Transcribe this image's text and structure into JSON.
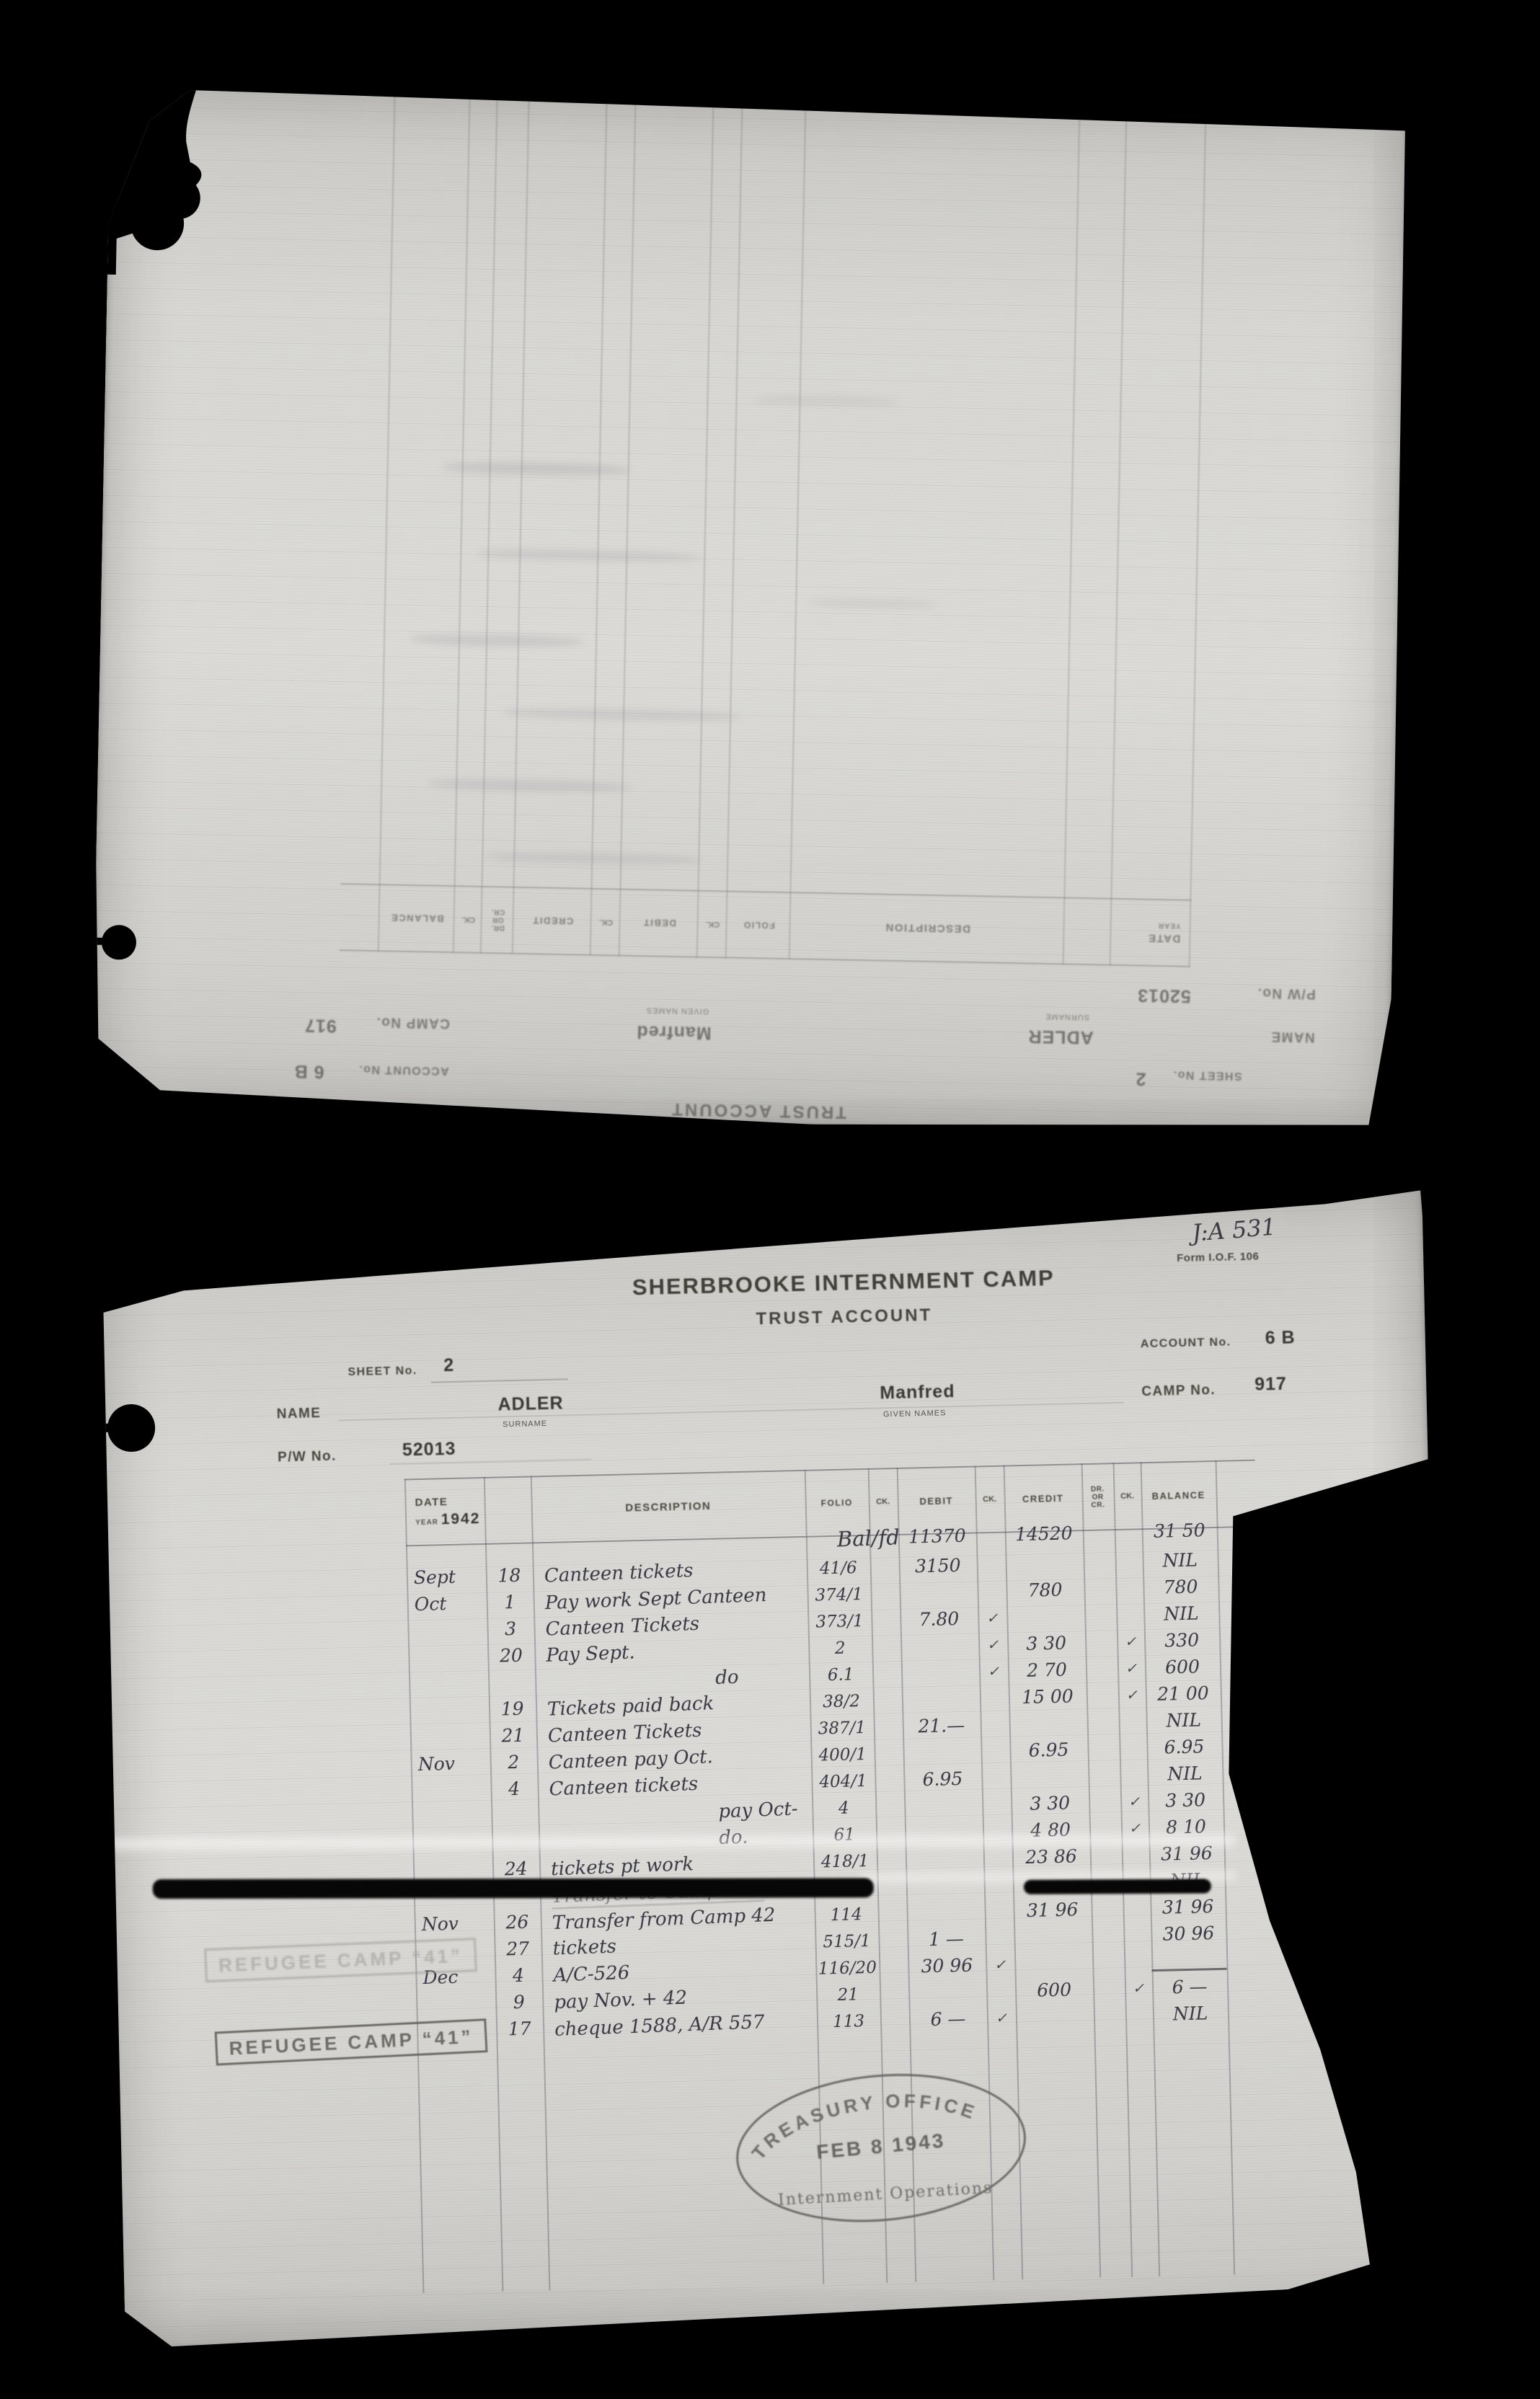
{
  "scan": {
    "file_ref": "J:A 531",
    "form_ref": "Form I.O.F. 106",
    "title": "SHERBROOKE INTERNMENT CAMP",
    "subtitle": "TRUST ACCOUNT",
    "labels": {
      "sheet_no": "SHEET No.",
      "account_no": "ACCOUNT No.",
      "name": "NAME",
      "surname": "SURNAME",
      "given_names": "GIVEN NAMES",
      "pw_no": "P/W No.",
      "camp_no": "CAMP No."
    },
    "columns": {
      "date": "DATE",
      "year": "YEAR",
      "description": "DESCRIPTION",
      "folio": "FOLIO",
      "ck": "CK.",
      "debit": "DEBIT",
      "credit": "CREDIT",
      "dr": "DR.",
      "or": "OR",
      "cr": "CR.",
      "balance": "BALANCE"
    },
    "account": {
      "sheet_no": "2",
      "surname": "ADLER",
      "given_names": "Manfred",
      "pw_no": "52013",
      "account_no": "6 B",
      "camp_no": "917",
      "year": "1942"
    },
    "stamps": {
      "refugee_camp": "REFUGEE CAMP “41”",
      "treasury_line1": "TREASURY OFFICE",
      "treasury_line2": "FEB 8 1943",
      "treasury_line3": "Internment Operations"
    },
    "ledger": {
      "rows": [
        {
          "desc": "Bal/fd",
          "db": "11370",
          "cr": "14520",
          "bal": "31 50",
          "rk": "✓",
          "cls": "balfwd"
        },
        {
          "m": "Sept",
          "d": "18",
          "desc": "Canteen tickets",
          "f": "41/6",
          "db": "3150",
          "bal": "NIL",
          "rk": "✓"
        },
        {
          "m": "Oct",
          "d": "1",
          "desc": "Pay work Sept Canteen",
          "f": "374/1",
          "cr": "780",
          "bal": "780",
          "rk": "✓"
        },
        {
          "d": "3",
          "desc": "Canteen Tickets",
          "f": "373/1",
          "db": "7.80",
          "c2": "✓",
          "bal": "NIL",
          "rk": "✓"
        },
        {
          "d": "20",
          "desc": "Pay Sept.",
          "f": "2",
          "c2": "✓",
          "cr": "3 30",
          "c3": "✓",
          "bal": "330",
          "rk": "✓"
        },
        {
          "desc": "do",
          "f": "6.1",
          "c2": "✓",
          "cr": "2 70",
          "c3": "✓",
          "bal": "600",
          "rk": "✓",
          "cls": "ind2"
        },
        {
          "d": "19",
          "desc": "Tickets paid back",
          "f": "38/2",
          "cr": "15 00",
          "c3": "✓",
          "bal": "21 00",
          "rk": "✓"
        },
        {
          "d": "21",
          "desc": "Canteen Tickets",
          "f": "387/1",
          "db": "21.—",
          "bal": "NIL"
        },
        {
          "m": "Nov",
          "d": "2",
          "desc": "Canteen pay Oct.",
          "f": "400/1",
          "cr": "6.95",
          "bal": "6.95"
        },
        {
          "d": "4",
          "desc": "Canteen tickets",
          "f": "404/1",
          "db": "6.95",
          "bal": "NIL"
        },
        {
          "desc": "pay Oct-",
          "f": "4",
          "cr": "3 30",
          "c3": "✓",
          "bal": "3 30",
          "cls": "ind2"
        },
        {
          "desc": "do.",
          "f": "61",
          "cr": "4 80",
          "c3": "✓",
          "bal": "8 10",
          "cls": "ind2"
        },
        {
          "d": "24",
          "desc": "tickets pt work",
          "f": "418/1",
          "cr": "23 86",
          "bal": "31 96"
        },
        {
          "d": "”",
          "desc": "Transfer to Camp #41",
          "bal": "NIL",
          "cls": "struck"
        },
        {
          "m": "Nov",
          "d": "26",
          "desc": "Transfer from Camp 42",
          "f": "114",
          "cr": "31 96",
          "bal": "31 96"
        },
        {
          "d": "27",
          "desc": "tickets",
          "f": "515/1",
          "db": "1 —",
          "bal": "30 96"
        },
        {
          "m": "Dec",
          "d": "4",
          "desc": "A/C-526",
          "f": "116/20",
          "db": "30 96",
          "c2": "✓",
          "bal": "",
          "cls": "balrule"
        },
        {
          "d": "9",
          "desc": "pay Nov. + 42",
          "f": "21",
          "cr": "600",
          "c3": "✓",
          "bal": "6 —"
        },
        {
          "d": "17",
          "desc": "cheque 1588, A/R 557",
          "f": "113",
          "db": "6 —",
          "c2": "✓",
          "bal": "NIL"
        }
      ]
    }
  }
}
